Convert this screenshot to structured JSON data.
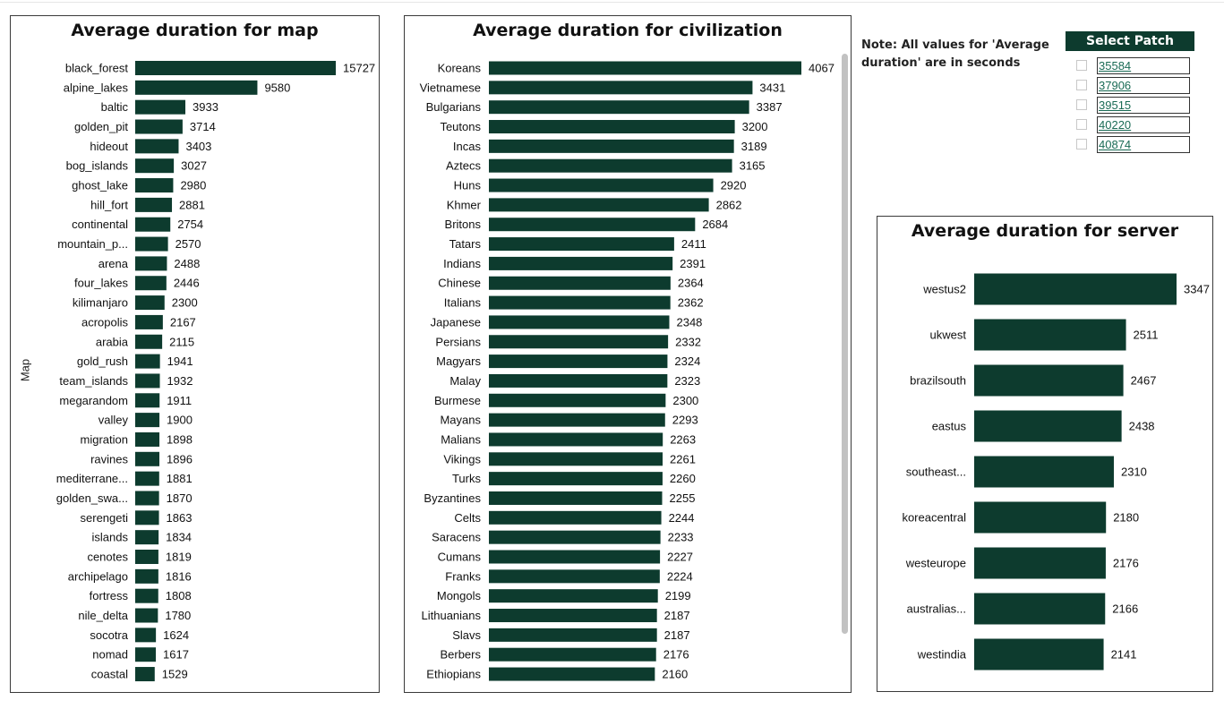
{
  "note": "Note: All values for 'Average duration' are in seconds",
  "slicer": {
    "title": "Select Patch",
    "options": [
      "35584",
      "37906",
      "39515",
      "40220",
      "40874"
    ]
  },
  "colors": {
    "bar": "#0d3b2e",
    "header": "#0d3b2e"
  },
  "charts": {
    "map": {
      "title": "Average duration for map",
      "axis_title": "Map"
    },
    "civ": {
      "title": "Average duration for civilization"
    },
    "server": {
      "title": "Average duration for server"
    }
  },
  "chart_data": [
    {
      "type": "bar",
      "orientation": "horizontal",
      "title": "Average duration for map",
      "ylabel": "Map",
      "categories": [
        "black_forest",
        "alpine_lakes",
        "baltic",
        "golden_pit",
        "hideout",
        "bog_islands",
        "ghost_lake",
        "hill_fort",
        "continental",
        "mountain_p...",
        "arena",
        "four_lakes",
        "kilimanjaro",
        "acropolis",
        "arabia",
        "gold_rush",
        "team_islands",
        "megarandom",
        "valley",
        "migration",
        "ravines",
        "mediterrane...",
        "golden_swa...",
        "serengeti",
        "islands",
        "cenotes",
        "archipelago",
        "fortress",
        "nile_delta",
        "socotra",
        "nomad",
        "coastal"
      ],
      "values": [
        15727,
        9580,
        3933,
        3714,
        3403,
        3027,
        2980,
        2881,
        2754,
        2570,
        2488,
        2446,
        2300,
        2167,
        2115,
        1941,
        1932,
        1911,
        1900,
        1898,
        1896,
        1881,
        1870,
        1863,
        1834,
        1819,
        1816,
        1808,
        1780,
        1624,
        1617,
        1529
      ],
      "xlim": [
        0,
        15727
      ]
    },
    {
      "type": "bar",
      "orientation": "horizontal",
      "title": "Average duration for civilization",
      "categories": [
        "Koreans",
        "Vietnamese",
        "Bulgarians",
        "Teutons",
        "Incas",
        "Aztecs",
        "Huns",
        "Khmer",
        "Britons",
        "Tatars",
        "Indians",
        "Chinese",
        "Italians",
        "Japanese",
        "Persians",
        "Magyars",
        "Malay",
        "Burmese",
        "Mayans",
        "Malians",
        "Vikings",
        "Turks",
        "Byzantines",
        "Celts",
        "Saracens",
        "Cumans",
        "Franks",
        "Mongols",
        "Lithuanians",
        "Slavs",
        "Berbers",
        "Ethiopians"
      ],
      "values": [
        4067,
        3431,
        3387,
        3200,
        3189,
        3165,
        2920,
        2862,
        2684,
        2411,
        2391,
        2364,
        2362,
        2348,
        2332,
        2324,
        2323,
        2300,
        2293,
        2263,
        2261,
        2260,
        2255,
        2244,
        2233,
        2227,
        2224,
        2199,
        2187,
        2187,
        2176,
        2160
      ],
      "xlim": [
        0,
        4067
      ]
    },
    {
      "type": "bar",
      "orientation": "horizontal",
      "title": "Average duration for server",
      "categories": [
        "westus2",
        "ukwest",
        "brazilsouth",
        "eastus",
        "southeast...",
        "koreacentral",
        "westeurope",
        "australias...",
        "westindia"
      ],
      "values": [
        3347,
        2511,
        2467,
        2438,
        2310,
        2180,
        2176,
        2166,
        2141
      ],
      "xlim": [
        0,
        3347
      ]
    }
  ]
}
